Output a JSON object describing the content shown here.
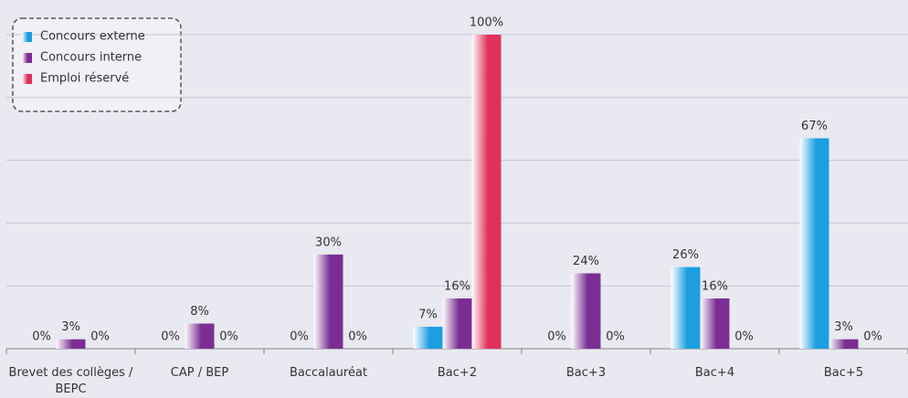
{
  "chart_data": {
    "type": "bar",
    "categories": [
      "Brevet des collèges / BEPC",
      "CAP / BEP",
      "Baccalauréat",
      "Bac+2",
      "Bac+3",
      "Bac+4",
      "Bac+5"
    ],
    "series": [
      {
        "name": "Concours externe",
        "color": "#1c9ee0",
        "values": [
          0,
          0,
          0,
          7,
          0,
          26,
          67
        ],
        "value_labels": [
          "0%",
          "0%",
          "0%",
          "7%",
          "0%",
          "26%",
          "67%"
        ]
      },
      {
        "name": "Concours interne",
        "color": "#7a2e94",
        "values": [
          3,
          8,
          30,
          16,
          24,
          16,
          3
        ],
        "value_labels": [
          "3%",
          "8%",
          "30%",
          "16%",
          "24%",
          "16%",
          "3%"
        ]
      },
      {
        "name": "Emploi réservé",
        "color": "#e0305c",
        "values": [
          0,
          0,
          0,
          100,
          0,
          0,
          0
        ],
        "value_labels": [
          "0%",
          "0%",
          "0%",
          "100%",
          "0%",
          "0%",
          "0%"
        ]
      }
    ],
    "ylim": [
      0,
      100
    ],
    "yticks": [
      0,
      20,
      40,
      60,
      80,
      100
    ],
    "grid": true,
    "legend": "top-left"
  }
}
